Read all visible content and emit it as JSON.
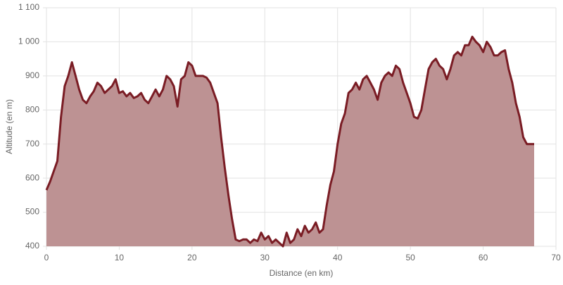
{
  "chart_data": {
    "type": "area",
    "xlabel": "Distance (en km)",
    "ylabel": "Altitude (en m)",
    "x": [
      0,
      0.5,
      1,
      1.5,
      2,
      2.5,
      3,
      3.5,
      4,
      4.5,
      5,
      5.5,
      6,
      6.5,
      7,
      7.5,
      8,
      8.5,
      9,
      9.5,
      10,
      10.5,
      11,
      11.5,
      12,
      12.5,
      13,
      13.5,
      14,
      14.5,
      15,
      15.5,
      16,
      16.5,
      17,
      17.5,
      18,
      18.5,
      19,
      19.5,
      20,
      20.5,
      21,
      21.5,
      22,
      22.5,
      23,
      23.5,
      24,
      24.5,
      25,
      25.5,
      26,
      26.5,
      27,
      27.5,
      28,
      28.5,
      29,
      29.5,
      30,
      30.5,
      31,
      31.5,
      32,
      32.5,
      33,
      33.5,
      34,
      34.5,
      35,
      35.5,
      36,
      36.5,
      37,
      37.5,
      38,
      38.5,
      39,
      39.5,
      40,
      40.5,
      41,
      41.5,
      42,
      42.5,
      43,
      43.5,
      44,
      44.5,
      45,
      45.5,
      46,
      46.5,
      47,
      47.5,
      48,
      48.5,
      49,
      49.5,
      50,
      50.5,
      51,
      51.5,
      52,
      52.5,
      53,
      53.5,
      54,
      54.5,
      55,
      55.5,
      56,
      56.5,
      57,
      57.5,
      58,
      58.5,
      59,
      59.5,
      60,
      60.5,
      61,
      61.5,
      62,
      62.5,
      63,
      63.5,
      64,
      64.5,
      65,
      65.5,
      66,
      67
    ],
    "values": [
      565,
      590,
      620,
      650,
      780,
      870,
      900,
      940,
      900,
      860,
      830,
      820,
      840,
      855,
      880,
      870,
      850,
      860,
      870,
      890,
      850,
      855,
      840,
      850,
      835,
      840,
      850,
      830,
      820,
      840,
      860,
      840,
      860,
      900,
      890,
      870,
      810,
      890,
      900,
      940,
      930,
      900,
      900,
      900,
      895,
      880,
      850,
      820,
      720,
      630,
      550,
      480,
      420,
      415,
      420,
      420,
      410,
      420,
      415,
      440,
      420,
      430,
      410,
      420,
      410,
      400,
      440,
      410,
      420,
      450,
      430,
      460,
      440,
      450,
      470,
      440,
      450,
      520,
      580,
      620,
      700,
      760,
      790,
      850,
      860,
      880,
      860,
      890,
      900,
      880,
      860,
      830,
      880,
      900,
      910,
      900,
      930,
      920,
      880,
      850,
      820,
      780,
      775,
      800,
      860,
      920,
      940,
      950,
      930,
      920,
      890,
      920,
      960,
      970,
      960,
      990,
      990,
      1015,
      1000,
      990,
      970,
      1000,
      985,
      960,
      960,
      970,
      975,
      920,
      880,
      820,
      780,
      720,
      700,
      700
    ],
    "color": "#7a1c24",
    "fill": "#bd9293",
    "xlim": [
      0,
      70
    ],
    "xticks": [
      0,
      10,
      20,
      30,
      40,
      50,
      60,
      70
    ],
    "ylim": [
      400,
      1100
    ],
    "yticks": [
      400,
      500,
      600,
      700,
      800,
      900,
      {
        "value": 1000,
        "label": "1 000"
      },
      {
        "value": 1100,
        "label": "1 100"
      }
    ],
    "grid": true
  }
}
